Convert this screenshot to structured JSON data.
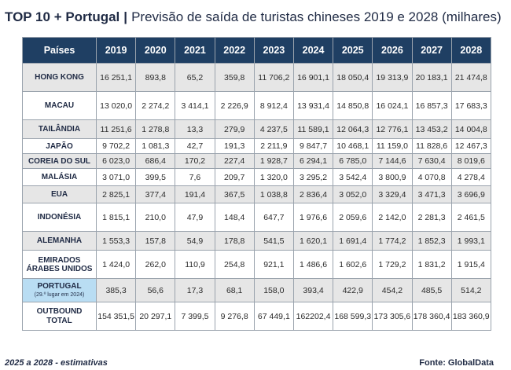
{
  "title": {
    "bold": "TOP 10 + Portugal",
    "separator": "|",
    "rest": "Previsão de saída de turistas chineses 2019 e 2028 (milhares)"
  },
  "table": {
    "header": [
      "Países",
      "2019",
      "2020",
      "2021",
      "2022",
      "2023",
      "2024",
      "2025",
      "2026",
      "2027",
      "2028"
    ],
    "rows": [
      {
        "country": "HONG KONG",
        "values": [
          "16 251,1",
          "893,8",
          "65,2",
          "359,8",
          "11 706,2",
          "16 901,1",
          "18 050,4",
          "19 313,9",
          "20 183,1",
          "21 474,8"
        ]
      },
      {
        "country": "MACAU",
        "values": [
          "13 020,0",
          "2 274,2",
          "3 414,1",
          "2 226,9",
          "8 912,4",
          "13 931,4",
          "14 850,8",
          "16 024,1",
          "16 857,3",
          "17 683,3"
        ]
      },
      {
        "country": "TAILÂNDIA",
        "values": [
          "11 251,6",
          "1 278,8",
          "13,3",
          "279,9",
          "4 237,5",
          "11 589,1",
          "12 064,3",
          "12 776,1",
          "13 453,2",
          "14 004,8"
        ]
      },
      {
        "country": "JAPÃO",
        "values": [
          "9 702,2",
          "1 081,3",
          "42,7",
          "191,3",
          "2 211,9",
          "9 847,7",
          "10 468,1",
          "11 159,0",
          "11 828,6",
          "12 467,3"
        ]
      },
      {
        "country": "COREIA DO SUL",
        "values": [
          "6 023,0",
          "686,4",
          "170,2",
          "227,4",
          "1 928,7",
          "6 294,1",
          "6 785,0",
          "7 144,6",
          "7 630,4",
          "8 019,6"
        ]
      },
      {
        "country": "MALÁSIA",
        "values": [
          "3 071,0",
          "399,5",
          "7,6",
          "209,7",
          "1 320,0",
          "3 295,2",
          "3 542,4",
          "3 800,9",
          "4 070,8",
          "4 278,4"
        ]
      },
      {
        "country": "EUA",
        "values": [
          "2 825,1",
          "377,4",
          "191,4",
          "367,5",
          "1 038,8",
          "2 836,4",
          "3 052,0",
          "3 329,4",
          "3 471,3",
          "3 696,9"
        ]
      },
      {
        "country": "INDONÉSIA",
        "values": [
          "1 815,1",
          "210,0",
          "47,9",
          "148,4",
          "647,7",
          "1 976,6",
          "2 059,6",
          "2 142,0",
          "2 281,3",
          "2 461,5"
        ]
      },
      {
        "country": "ALEMANHA",
        "values": [
          "1 553,3",
          "157,8",
          "54,9",
          "178,8",
          "541,5",
          "1 620,1",
          "1 691,4",
          "1 774,2",
          "1 852,3",
          "1 993,1"
        ]
      },
      {
        "country": "EMIRADOS ÁRABES UNIDOS",
        "values": [
          "1 424,0",
          "262,0",
          "110,9",
          "254,8",
          "921,1",
          "1 486,6",
          "1 602,6",
          "1 729,2",
          "1 831,2",
          "1 915,4"
        ]
      }
    ],
    "portugal": {
      "country": "PORTUGAL",
      "note": "(29.º lugar em 2024)",
      "values": [
        "385,3",
        "56,6",
        "17,3",
        "68,1",
        "158,0",
        "393,4",
        "422,9",
        "454,2",
        "485,5",
        "514,2"
      ]
    },
    "total": {
      "label": "OUTBOUND TOTAL",
      "values": [
        "154 351,5",
        "20 297,1",
        "7 399,5",
        "9 276,8",
        "67 449,1",
        "162202,4",
        "168 599,3",
        "173 305,6",
        "178 360,4",
        "183 360,9"
      ]
    }
  },
  "footer": {
    "note": "2025 a 2028 - estimativas",
    "source": "Fonte: GlobalData"
  },
  "colors": {
    "header_bg": "#1f3f63",
    "zebra": "#e6e6e6",
    "portugal_highlight": "#b9ddf3"
  }
}
